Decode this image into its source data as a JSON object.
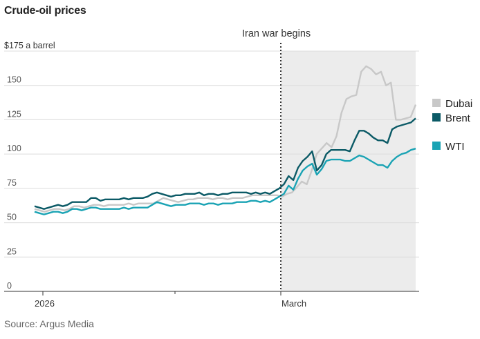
{
  "title": "Crude-oil prices",
  "source": "Source: Argus Media",
  "chart_data": {
    "type": "line",
    "title": "Crude-oil prices",
    "ylabel": "$175 a barrel",
    "ylim": [
      0,
      175
    ],
    "yticks": [
      0,
      25,
      50,
      75,
      100,
      125,
      150
    ],
    "ytick_labels": [
      "0",
      "25",
      "50",
      "75",
      "100",
      "125",
      "150"
    ],
    "top_tick_label": "$175 a barrel",
    "xlabels": [
      "2026",
      "March"
    ],
    "annotation": "Iran war begins",
    "grid": true,
    "shaded_region": "from annotation to end",
    "legend_placement": "right",
    "colors": {
      "Dubai": "#c8c8c8",
      "Brent": "#0b5a66",
      "WTI": "#1aa3b4"
    },
    "series": [
      {
        "name": "Dubai",
        "values": [
          60,
          59,
          58,
          59,
          60,
          60,
          59,
          60,
          62,
          62,
          61,
          62,
          63,
          63,
          62,
          63,
          63,
          63,
          63,
          64,
          63,
          64,
          64,
          64,
          64,
          66,
          68,
          67,
          66,
          65,
          66,
          67,
          67,
          68,
          68,
          68,
          67,
          68,
          68,
          67,
          68,
          68,
          68,
          69,
          70,
          70,
          70,
          70,
          70,
          70,
          69,
          71,
          72,
          76,
          80,
          78,
          88,
          100,
          104,
          108,
          105,
          113,
          130,
          140,
          142,
          143,
          160,
          164,
          162,
          158,
          160,
          150,
          152,
          125,
          125,
          126,
          127,
          136
        ]
      },
      {
        "name": "Brent",
        "values": [
          62,
          61,
          60,
          61,
          62,
          63,
          62,
          63,
          65,
          65,
          65,
          65,
          68,
          68,
          66,
          67,
          67,
          67,
          67,
          68,
          67,
          68,
          68,
          68,
          69,
          71,
          72,
          71,
          70,
          69,
          70,
          70,
          71,
          71,
          71,
          72,
          70,
          71,
          71,
          70,
          71,
          71,
          72,
          72,
          72,
          72,
          71,
          72,
          71,
          72,
          71,
          73,
          75,
          78,
          84,
          81,
          90,
          95,
          98,
          102,
          88,
          92,
          100,
          103,
          103,
          103,
          103,
          102,
          110,
          117,
          117,
          115,
          112,
          110,
          110,
          108,
          118,
          120,
          121,
          122,
          123,
          126
        ]
      },
      {
        "name": "WTI",
        "values": [
          58,
          57,
          56,
          57,
          58,
          58,
          57,
          58,
          60,
          60,
          59,
          60,
          61,
          61,
          60,
          60,
          60,
          60,
          60,
          61,
          60,
          61,
          61,
          61,
          61,
          63,
          65,
          64,
          63,
          62,
          63,
          63,
          63,
          64,
          64,
          64,
          63,
          64,
          64,
          63,
          64,
          64,
          64,
          65,
          65,
          65,
          66,
          66,
          65,
          66,
          65,
          67,
          69,
          71,
          77,
          74,
          82,
          88,
          91,
          93,
          85,
          89,
          95,
          96,
          96,
          96,
          95,
          95,
          97,
          99,
          98,
          96,
          94,
          92,
          92,
          90,
          95,
          98,
          100,
          101,
          103,
          104
        ]
      }
    ]
  }
}
